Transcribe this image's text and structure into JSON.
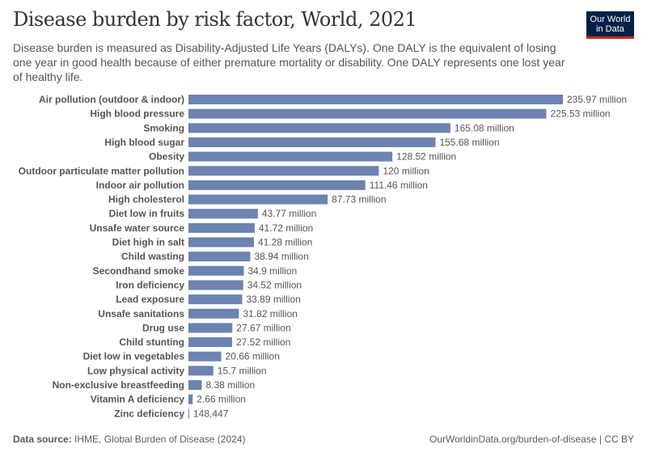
{
  "title": "Disease burden by risk factor, World, 2021",
  "subtitle": "Disease burden is measured as Disability-Adjusted Life Years (DALYs). One DALY is the equivalent of losing one year in good health because of either premature mortality or disability. One DALY represents one lost year of healthy life.",
  "logo": {
    "line1": "Our World",
    "line2": "in Data"
  },
  "footer": {
    "source_label": "Data source:",
    "source": " IHME, Global Burden of Disease (2024)",
    "url": "OurWorldinData.org/burden-of-disease | CC BY"
  },
  "colors": {
    "bar": "#6d83b0",
    "logo_bg": "#002147",
    "logo_accent": "#ce261e"
  },
  "chart_data": {
    "type": "bar",
    "orientation": "horizontal",
    "unit": "DALYs",
    "categories": [
      "Air pollution (outdoor & indoor)",
      "High blood pressure",
      "Smoking",
      "High blood sugar",
      "Obesity",
      "Outdoor particulate matter pollution",
      "Indoor air pollution",
      "High cholesterol",
      "Diet low in fruits",
      "Unsafe water source",
      "Diet high in salt",
      "Child wasting",
      "Secondhand smoke",
      "Iron deficiency",
      "Lead exposure",
      "Unsafe sanitations",
      "Drug use",
      "Child stunting",
      "Diet low in vegetables",
      "Low physical activity",
      "Non-exclusive breastfeeding",
      "Vitamin A deficiency",
      "Zinc deficiency"
    ],
    "values": [
      235970000,
      225530000,
      165080000,
      155680000,
      128520000,
      120000000,
      111460000,
      87730000,
      43770000,
      41720000,
      41280000,
      38940000,
      34900000,
      34520000,
      33890000,
      31820000,
      27670000,
      27520000,
      20660000,
      15700000,
      8380000,
      2660000,
      148447
    ],
    "labels": [
      "235.97 million",
      "225.53 million",
      "165.08 million",
      "155.68 million",
      "128.52 million",
      "120 million",
      "111.46 million",
      "87.73 million",
      "43.77 million",
      "41.72 million",
      "41.28 million",
      "38.94 million",
      "34.9 million",
      "34.52 million",
      "33.89 million",
      "31.82 million",
      "27.67 million",
      "27.52 million",
      "20.66 million",
      "15.7 million",
      "8.38 million",
      "2.66 million",
      "148,447"
    ]
  }
}
